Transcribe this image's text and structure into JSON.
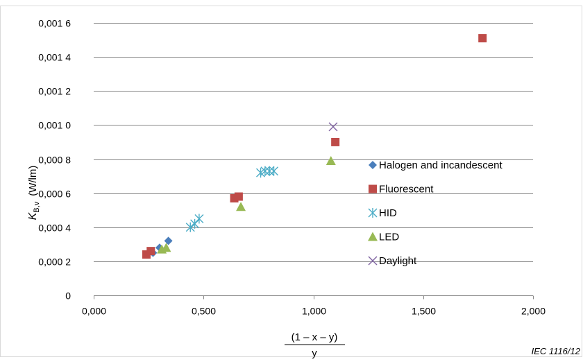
{
  "chart_data": {
    "type": "scatter",
    "ylabel_main": "K",
    "ylabel_sub": "B,v",
    "ylabel_unit": "(W/lm)",
    "xlabel_numerator": "(1 – x – y)",
    "xlabel_denominator": "y",
    "credit": "IEC  1116/12",
    "xlim": [
      0,
      2.0
    ],
    "ylim": [
      0,
      0.0016
    ],
    "x_ticks": [
      {
        "value": 0,
        "label": "0,000"
      },
      {
        "value": 0.5,
        "label": "0,500"
      },
      {
        "value": 1.0,
        "label": "1,000"
      },
      {
        "value": 1.5,
        "label": "1,500"
      },
      {
        "value": 2.0,
        "label": "2,000"
      }
    ],
    "y_ticks": [
      {
        "value": 0,
        "label": "0"
      },
      {
        "value": 0.0002,
        "label": "0,000 2"
      },
      {
        "value": 0.0004,
        "label": "0,000 4"
      },
      {
        "value": 0.0006,
        "label": "0,000 6"
      },
      {
        "value": 0.0008,
        "label": "0,000 8"
      },
      {
        "value": 0.001,
        "label": "0,001 0"
      },
      {
        "value": 0.0012,
        "label": "0,001 2"
      },
      {
        "value": 0.0014,
        "label": "0,001 4"
      },
      {
        "value": 0.0016,
        "label": "0,001 6"
      }
    ],
    "grid": "horizontal",
    "legend_position": "right",
    "series": [
      {
        "name": "Halogen and incandescent",
        "marker": "diamond",
        "color": "#4a7ebb",
        "points": [
          [
            0.27,
            0.00025
          ],
          [
            0.3,
            0.00028
          ],
          [
            0.34,
            0.00032
          ]
        ]
      },
      {
        "name": "Fluorescent",
        "marker": "square",
        "color": "#be4b48",
        "points": [
          [
            0.24,
            0.00024
          ],
          [
            0.26,
            0.00026
          ],
          [
            0.64,
            0.00057
          ],
          [
            0.66,
            0.00058
          ],
          [
            1.1,
            0.0009
          ],
          [
            1.77,
            0.00151
          ]
        ]
      },
      {
        "name": "HID",
        "marker": "asterisk",
        "color": "#4bacc6",
        "points": [
          [
            0.44,
            0.0004
          ],
          [
            0.46,
            0.00042
          ],
          [
            0.48,
            0.00045
          ],
          [
            0.76,
            0.00072
          ],
          [
            0.78,
            0.00073
          ],
          [
            0.8,
            0.00073
          ],
          [
            0.82,
            0.00073
          ]
        ]
      },
      {
        "name": "LED",
        "marker": "triangle",
        "color": "#98b954",
        "points": [
          [
            0.31,
            0.00027
          ],
          [
            0.33,
            0.00028
          ],
          [
            0.67,
            0.00052
          ],
          [
            1.08,
            0.00079
          ]
        ]
      },
      {
        "name": "Daylight",
        "marker": "x",
        "color": "#8064a2",
        "points": [
          [
            1.09,
            0.00099
          ]
        ]
      }
    ]
  }
}
